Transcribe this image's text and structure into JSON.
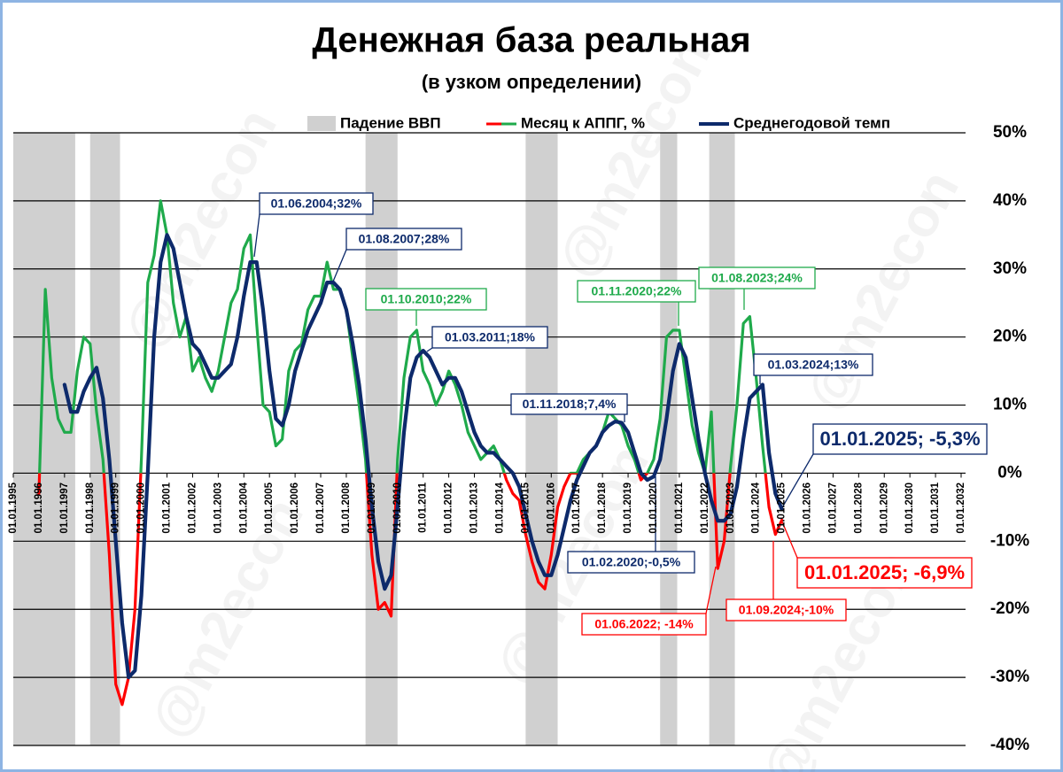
{
  "chart_data": {
    "type": "line",
    "title": "Денежная база реальная",
    "subtitle": "(в узком определении)",
    "watermark": "@m2econ",
    "xlim": [
      "01.01.1995",
      "01.01.2032"
    ],
    "xticks": [
      "01.01.1995",
      "01.01.1996",
      "01.01.1997",
      "01.01.1998",
      "01.01.1999",
      "01.01.2000",
      "01.01.2001",
      "01.01.2002",
      "01.01.2003",
      "01.01.2004",
      "01.01.2005",
      "01.01.2006",
      "01.01.2007",
      "01.01.2008",
      "01.01.2009",
      "01.01.2010",
      "01.01.2011",
      "01.01.2012",
      "01.01.2013",
      "01.01.2014",
      "01.01.2015",
      "01.01.2016",
      "01.01.2017",
      "01.01.2018",
      "01.01.2019",
      "01.01.2020",
      "01.01.2021",
      "01.01.2022",
      "01.01.2023",
      "01.01.2024",
      "01.01.2025",
      "01.01.2026",
      "01.01.2027",
      "01.01.2028",
      "01.01.2029",
      "01.01.2030",
      "01.01.2031",
      "01.01.2032"
    ],
    "ylim": [
      -40,
      50
    ],
    "yticks": [
      {
        "value": 50,
        "label": "50%"
      },
      {
        "value": 40,
        "label": "40%"
      },
      {
        "value": 30,
        "label": "30%"
      },
      {
        "value": 20,
        "label": "20%"
      },
      {
        "value": 10,
        "label": "10%"
      },
      {
        "value": 0,
        "label": "0%"
      },
      {
        "value": -10,
        "label": "-10%"
      },
      {
        "value": -20,
        "label": "-20%"
      },
      {
        "value": -30,
        "label": "-30%"
      },
      {
        "value": -40,
        "label": "-40%"
      }
    ],
    "grid": true,
    "bands": {
      "name": "Падение ВВП",
      "color": "#d0d0d0",
      "spans": [
        [
          "01.01.1995",
          "01.06.1997"
        ],
        [
          "01.01.1998",
          "01.03.1999"
        ],
        [
          "01.10.2008",
          "01.01.2010"
        ],
        [
          "01.01.2015",
          "01.04.2016"
        ],
        [
          "01.04.2020",
          "01.12.2020"
        ],
        [
          "01.03.2022",
          "01.03.2023"
        ]
      ]
    },
    "x": [
      "01.01.1996",
      "01.04.1996",
      "01.07.1996",
      "01.10.1996",
      "01.01.1997",
      "01.04.1997",
      "01.07.1997",
      "01.10.1997",
      "01.01.1998",
      "01.04.1998",
      "01.07.1998",
      "01.10.1998",
      "01.01.1999",
      "01.04.1999",
      "01.07.1999",
      "01.10.1999",
      "01.01.2000",
      "01.04.2000",
      "01.07.2000",
      "01.10.2000",
      "01.01.2001",
      "01.04.2001",
      "01.07.2001",
      "01.10.2001",
      "01.01.2002",
      "01.04.2002",
      "01.07.2002",
      "01.10.2002",
      "01.01.2003",
      "01.04.2003",
      "01.07.2003",
      "01.10.2003",
      "01.01.2004",
      "01.04.2004",
      "01.07.2004",
      "01.10.2004",
      "01.01.2005",
      "01.04.2005",
      "01.07.2005",
      "01.10.2005",
      "01.01.2006",
      "01.04.2006",
      "01.07.2006",
      "01.10.2006",
      "01.01.2007",
      "01.04.2007",
      "01.07.2007",
      "01.10.2007",
      "01.01.2008",
      "01.04.2008",
      "01.07.2008",
      "01.10.2008",
      "01.01.2009",
      "01.04.2009",
      "01.07.2009",
      "01.10.2009",
      "01.01.2010",
      "01.04.2010",
      "01.07.2010",
      "01.10.2010",
      "01.01.2011",
      "01.04.2011",
      "01.07.2011",
      "01.10.2011",
      "01.01.2012",
      "01.04.2012",
      "01.07.2012",
      "01.10.2012",
      "01.01.2013",
      "01.04.2013",
      "01.07.2013",
      "01.10.2013",
      "01.01.2014",
      "01.04.2014",
      "01.07.2014",
      "01.10.2014",
      "01.01.2015",
      "01.04.2015",
      "01.07.2015",
      "01.10.2015",
      "01.01.2016",
      "01.04.2016",
      "01.07.2016",
      "01.10.2016",
      "01.01.2017",
      "01.04.2017",
      "01.07.2017",
      "01.10.2017",
      "01.01.2018",
      "01.04.2018",
      "01.07.2018",
      "01.10.2018",
      "01.01.2019",
      "01.04.2019",
      "01.07.2019",
      "01.10.2019",
      "01.01.2020",
      "01.04.2020",
      "01.07.2020",
      "01.10.2020",
      "01.01.2021",
      "01.04.2021",
      "01.07.2021",
      "01.10.2021",
      "01.01.2022",
      "01.04.2022",
      "01.07.2022",
      "01.10.2022",
      "01.01.2023",
      "01.04.2023",
      "01.07.2023",
      "01.10.2023",
      "01.01.2024",
      "01.04.2024",
      "01.07.2024",
      "01.10.2024",
      "01.01.2025"
    ],
    "series": [
      {
        "name": "Месяц к АППГ, %",
        "color": "#1faa4b",
        "negative_color": "#ff0000",
        "values": [
          -3,
          27,
          14,
          8,
          6,
          6,
          15,
          20,
          19,
          9,
          2,
          -12,
          -31,
          -34,
          -30,
          -20,
          2,
          28,
          32,
          40,
          35,
          25,
          20,
          23,
          15,
          17,
          14,
          12,
          15,
          20,
          25,
          27,
          33,
          35,
          22,
          10,
          9,
          4,
          5,
          15,
          18,
          19,
          24,
          26,
          26,
          31,
          27,
          27,
          24,
          17,
          10,
          2,
          -12,
          -20,
          -19,
          -21,
          2,
          14,
          20,
          21,
          15,
          13,
          10,
          12,
          15,
          13,
          10,
          6,
          4,
          2,
          3,
          4,
          2,
          -1,
          -3,
          -4,
          -9,
          -13,
          -16,
          -17,
          -12,
          -5,
          -2,
          0,
          0,
          2,
          3,
          4,
          6,
          9,
          8,
          7,
          4,
          2,
          -1,
          0,
          2,
          8,
          20,
          21,
          21,
          14,
          7,
          3,
          0,
          9,
          -14,
          -10,
          1,
          10,
          22,
          23,
          14,
          4,
          -5,
          -9,
          -6.9
        ]
      },
      {
        "name": "Среднегодовой темп",
        "color": "#0d2a6b",
        "values": [
          null,
          null,
          null,
          null,
          13,
          9,
          9,
          12,
          14,
          15.5,
          11,
          2,
          -10,
          -22,
          -30,
          -29,
          -18,
          0,
          20,
          31,
          35,
          33,
          28,
          23,
          19,
          18,
          16,
          14,
          14,
          15,
          16,
          20,
          26,
          31,
          31,
          24,
          15,
          8,
          7,
          10,
          15,
          18,
          21,
          23,
          25,
          28,
          28,
          27,
          24,
          19,
          13,
          5,
          -5,
          -13,
          -17,
          -15,
          -5,
          6,
          14,
          17,
          18,
          17,
          15,
          13,
          14,
          14,
          12,
          9,
          6,
          4,
          3,
          3,
          2,
          1,
          0,
          -2,
          -6,
          -10,
          -13,
          -15,
          -15,
          -12,
          -8,
          -4,
          -1,
          1,
          3,
          4,
          6,
          7,
          7.6,
          7.4,
          6,
          3,
          0,
          -1,
          -0.5,
          2,
          8,
          15,
          19,
          17,
          11,
          5,
          0,
          -4,
          -7,
          -7,
          -6,
          -2,
          5,
          11,
          12,
          13,
          3,
          -3,
          -5.3
        ]
      }
    ],
    "annotations": [
      "01.06.2004;32%",
      "01.08.2007;28%",
      "01.10.2010;22%",
      "01.03.2011;18%",
      "01.11.2018;7,4%",
      "01.11.2020;22%",
      "01.08.2023;24%",
      "01.03.2024;13%",
      "01.01.2025; -5,3%",
      "01.02.2020;-0,5%",
      "01.06.2022; -14%",
      "01.09.2024;-10%",
      "01.01.2025; -6,9%"
    ]
  }
}
